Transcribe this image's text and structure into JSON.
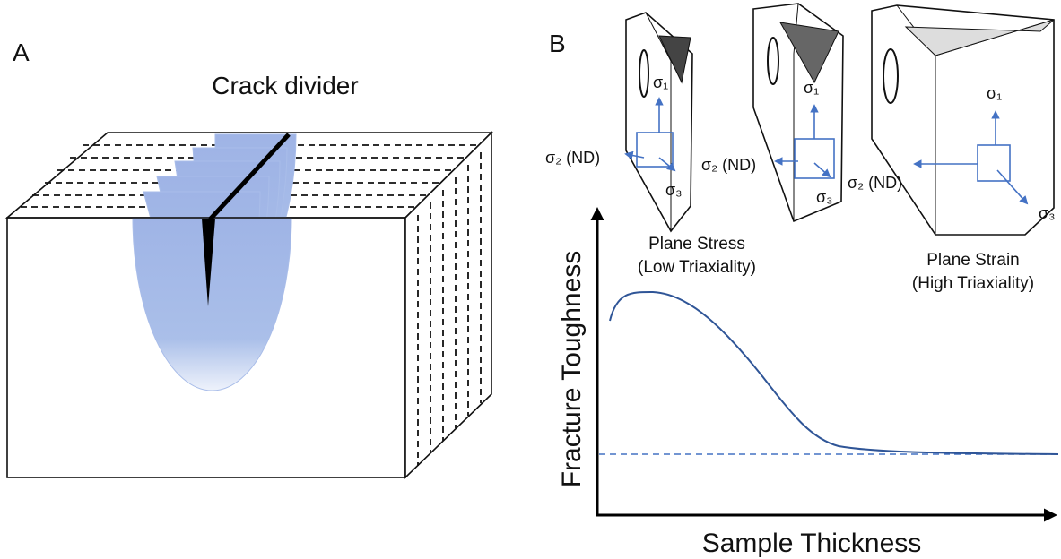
{
  "panel_a": {
    "label": "A",
    "title": "Crack divider"
  },
  "panel_b": {
    "label": "B",
    "specimens": [
      {
        "sigma1": "σ₁",
        "sigma2": "σ₂ (ND)",
        "sigma3": "σ₃"
      },
      {
        "sigma1": "σ₁",
        "sigma2": "σ₂ (ND)",
        "sigma3": "σ₃"
      },
      {
        "sigma1": "σ₁",
        "sigma2": "σ₂ (ND)",
        "sigma3": "σ₃"
      }
    ],
    "annotations": [
      {
        "lines": [
          "Plane Stress",
          "(Low Triaxiality)"
        ]
      },
      {
        "lines": [
          "Plane Strain",
          "(High Triaxiality)"
        ]
      }
    ],
    "y_label": "Fracture Toughness",
    "x_label": "Sample Thickness"
  }
}
